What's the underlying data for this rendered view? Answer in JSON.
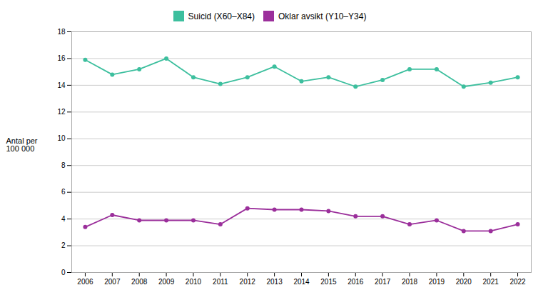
{
  "chart_data": {
    "type": "line",
    "y_label": "Antal per\n100 000",
    "x": [
      2006,
      2007,
      2008,
      2009,
      2010,
      2011,
      2012,
      2013,
      2014,
      2015,
      2016,
      2017,
      2018,
      2019,
      2020,
      2021,
      2022
    ],
    "series": [
      {
        "name": "Suicid (X60–X84)",
        "color": "#3dbf9e",
        "marker": "circle",
        "values": [
          15.9,
          14.8,
          15.2,
          16.0,
          14.6,
          14.1,
          14.6,
          15.4,
          14.3,
          14.6,
          13.9,
          14.4,
          15.2,
          15.2,
          13.9,
          14.2,
          14.6
        ]
      },
      {
        "name": "Oklar avsikt (Y10–Y34)",
        "color": "#9b2f9b",
        "marker": "circle",
        "values": [
          3.4,
          4.3,
          3.9,
          3.9,
          3.9,
          3.6,
          4.8,
          4.7,
          4.7,
          4.6,
          4.2,
          4.2,
          3.6,
          3.9,
          3.1,
          3.1,
          3.6
        ]
      }
    ],
    "xlim": [
      2005.5,
      2022.5
    ],
    "xticks": [
      2006,
      2007,
      2008,
      2009,
      2010,
      2011,
      2012,
      2013,
      2014,
      2015,
      2016,
      2017,
      2018,
      2019,
      2020,
      2021,
      2022
    ],
    "ylim": [
      0,
      18
    ],
    "yticks": [
      0,
      2,
      4,
      6,
      8,
      10,
      12,
      14,
      16,
      18
    ],
    "grid": true,
    "legend": "top"
  }
}
